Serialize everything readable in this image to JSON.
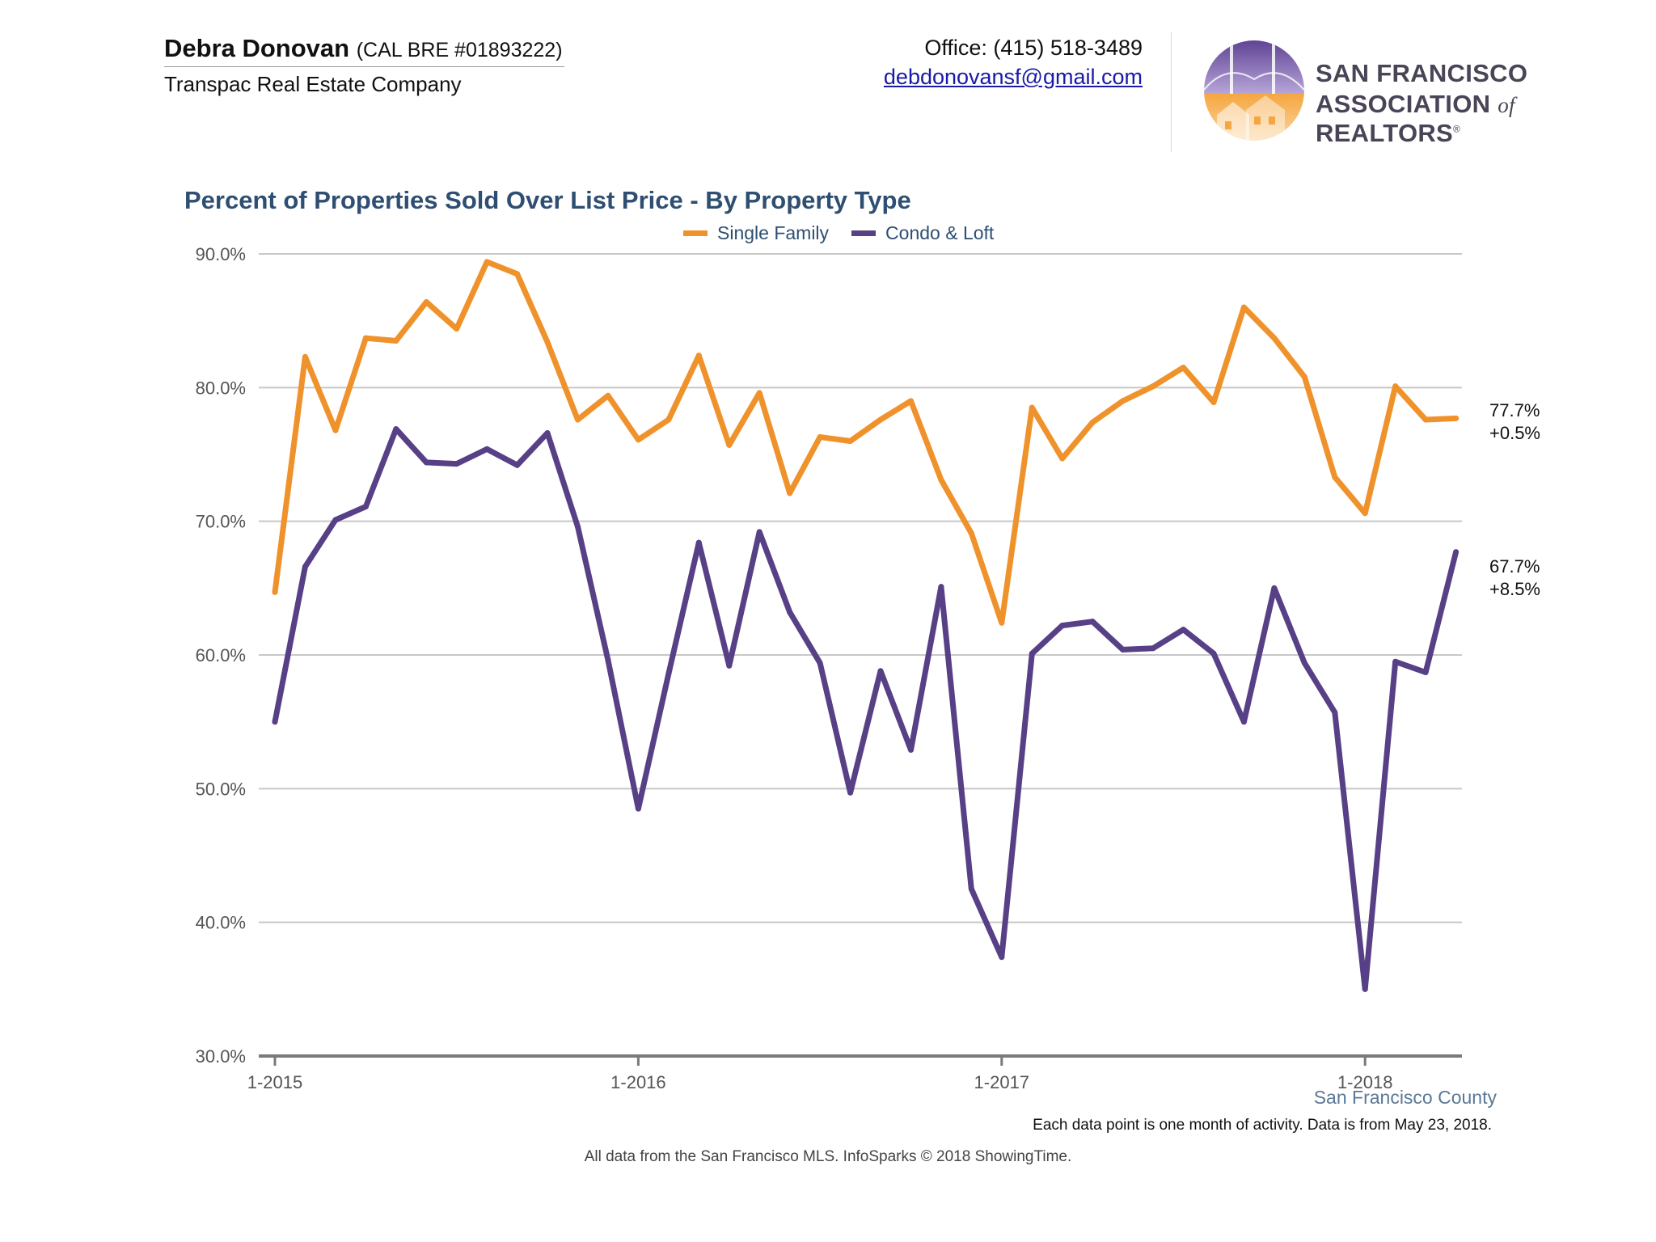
{
  "header": {
    "agent_name": "Debra Donovan",
    "license": "(CAL BRE #01893222)",
    "company": "Transpac Real Estate Company",
    "office_phone": "Office: (415) 518-3489",
    "email": "debdonovansf@gmail.com",
    "logo": {
      "line1": "SAN FRANCISCO",
      "line2_pre": "ASSOCIATION ",
      "line2_of": "of",
      "line2_post": " REALTORS",
      "registered": "®",
      "icon": "golden-gate-houses-logo-icon"
    }
  },
  "colors": {
    "single_family": "#f0922b",
    "condo_loft": "#574086",
    "title": "#2e4e72",
    "grid": "#c8c8c8",
    "axis": "#7a7a7a"
  },
  "chart_data": {
    "type": "line",
    "title": "Percent of Properties Sold Over List Price - By Property Type",
    "xlabel": "",
    "ylabel": "",
    "ylim": [
      30,
      90
    ],
    "y_ticks": [
      "90.0%",
      "80.0%",
      "70.0%",
      "60.0%",
      "50.0%",
      "40.0%",
      "30.0%"
    ],
    "y_tick_values": [
      90,
      80,
      70,
      60,
      50,
      40,
      30
    ],
    "x_ticks": [
      "1-2015",
      "1-2016",
      "1-2017",
      "1-2018"
    ],
    "x_tick_index": [
      0,
      12,
      24,
      36
    ],
    "grid": true,
    "legend_position": "top-center",
    "x": [
      "1-2015",
      "2-2015",
      "3-2015",
      "4-2015",
      "5-2015",
      "6-2015",
      "7-2015",
      "8-2015",
      "9-2015",
      "10-2015",
      "11-2015",
      "12-2015",
      "1-2016",
      "2-2016",
      "3-2016",
      "4-2016",
      "5-2016",
      "6-2016",
      "7-2016",
      "8-2016",
      "9-2016",
      "10-2016",
      "11-2016",
      "12-2016",
      "1-2017",
      "2-2017",
      "3-2017",
      "4-2017",
      "5-2017",
      "6-2017",
      "7-2017",
      "8-2017",
      "9-2017",
      "10-2017",
      "11-2017",
      "12-2017",
      "1-2018",
      "2-2018",
      "3-2018",
      "4-2018"
    ],
    "series": [
      {
        "name": "Single Family",
        "color": "#f0922b",
        "values": [
          64.7,
          82.3,
          76.8,
          83.7,
          83.5,
          86.4,
          84.4,
          89.4,
          88.5,
          83.4,
          77.6,
          79.4,
          76.1,
          77.6,
          82.4,
          75.7,
          79.6,
          72.1,
          76.3,
          76.0,
          77.6,
          79.0,
          73.1,
          69.1,
          62.4,
          78.5,
          74.7,
          77.4,
          79.0,
          80.1,
          81.5,
          78.9,
          86.0,
          83.7,
          80.8,
          73.3,
          70.6,
          80.1,
          77.6,
          77.7
        ],
        "end_value": "77.7%",
        "end_change": "+0.5%"
      },
      {
        "name": "Condo & Loft",
        "color": "#574086",
        "values": [
          55.0,
          66.6,
          70.1,
          71.1,
          76.9,
          74.4,
          74.3,
          75.4,
          74.2,
          76.6,
          69.6,
          59.6,
          48.5,
          58.6,
          68.4,
          59.2,
          69.2,
          63.2,
          59.4,
          49.7,
          58.8,
          52.9,
          65.1,
          42.5,
          37.4,
          60.1,
          62.2,
          62.5,
          60.4,
          60.5,
          61.9,
          60.1,
          55.0,
          65.0,
          59.4,
          55.7,
          35.0,
          59.5,
          58.7,
          67.7
        ],
        "end_value": "67.7%",
        "end_change": "+8.5%"
      }
    ]
  },
  "footer": {
    "county": "San Francisco County",
    "note": "Each data point is one month of activity. Data is from May 23, 2018.",
    "source": "All data from the San Francisco MLS. InfoSparks © 2018 ShowingTime."
  }
}
